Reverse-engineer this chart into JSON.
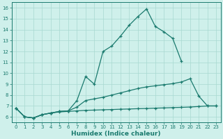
{
  "xlabel": "Humidex (Indice chaleur)",
  "bg_color": "#cff0eb",
  "grid_color": "#a8d8d0",
  "line_color": "#1a7a6e",
  "xlim": [
    -0.5,
    23.5
  ],
  "ylim": [
    5.5,
    16.5
  ],
  "xticks": [
    0,
    1,
    2,
    3,
    4,
    5,
    6,
    7,
    8,
    9,
    10,
    11,
    12,
    13,
    14,
    15,
    16,
    17,
    18,
    19,
    20,
    21,
    22,
    23
  ],
  "yticks": [
    6,
    7,
    8,
    9,
    10,
    11,
    12,
    13,
    14,
    15,
    16
  ],
  "line1_x": [
    0,
    1,
    2,
    3,
    4,
    5,
    6,
    7,
    8,
    9,
    10,
    11,
    12,
    13,
    14,
    15,
    16,
    17,
    18,
    19
  ],
  "line1_y": [
    6.8,
    6.0,
    5.9,
    6.2,
    6.35,
    6.5,
    6.55,
    7.5,
    9.7,
    9.0,
    12.0,
    12.5,
    13.4,
    14.4,
    15.2,
    15.9,
    14.3,
    13.8,
    13.2,
    11.1
  ],
  "line2_x": [
    0,
    1,
    2,
    3,
    4,
    5,
    6,
    7,
    8,
    9,
    10,
    11,
    12,
    13,
    14,
    15,
    16,
    17,
    18,
    19,
    20,
    21,
    22,
    23
  ],
  "line2_y": [
    6.8,
    6.0,
    5.9,
    6.2,
    6.35,
    6.5,
    6.55,
    6.9,
    7.5,
    7.65,
    7.8,
    8.0,
    8.2,
    8.4,
    8.6,
    8.75,
    8.85,
    8.95,
    9.05,
    9.2,
    9.5,
    7.9,
    7.0,
    7.0
  ],
  "line3_x": [
    0,
    1,
    2,
    3,
    4,
    5,
    6,
    7,
    8,
    9,
    10,
    11,
    12,
    13,
    14,
    15,
    16,
    17,
    18,
    19,
    20,
    21,
    22,
    23
  ],
  "line3_y": [
    6.8,
    6.0,
    5.9,
    6.2,
    6.35,
    6.45,
    6.5,
    6.55,
    6.6,
    6.62,
    6.65,
    6.67,
    6.7,
    6.72,
    6.75,
    6.77,
    6.8,
    6.82,
    6.85,
    6.87,
    6.9,
    6.95,
    7.0,
    7.0
  ]
}
